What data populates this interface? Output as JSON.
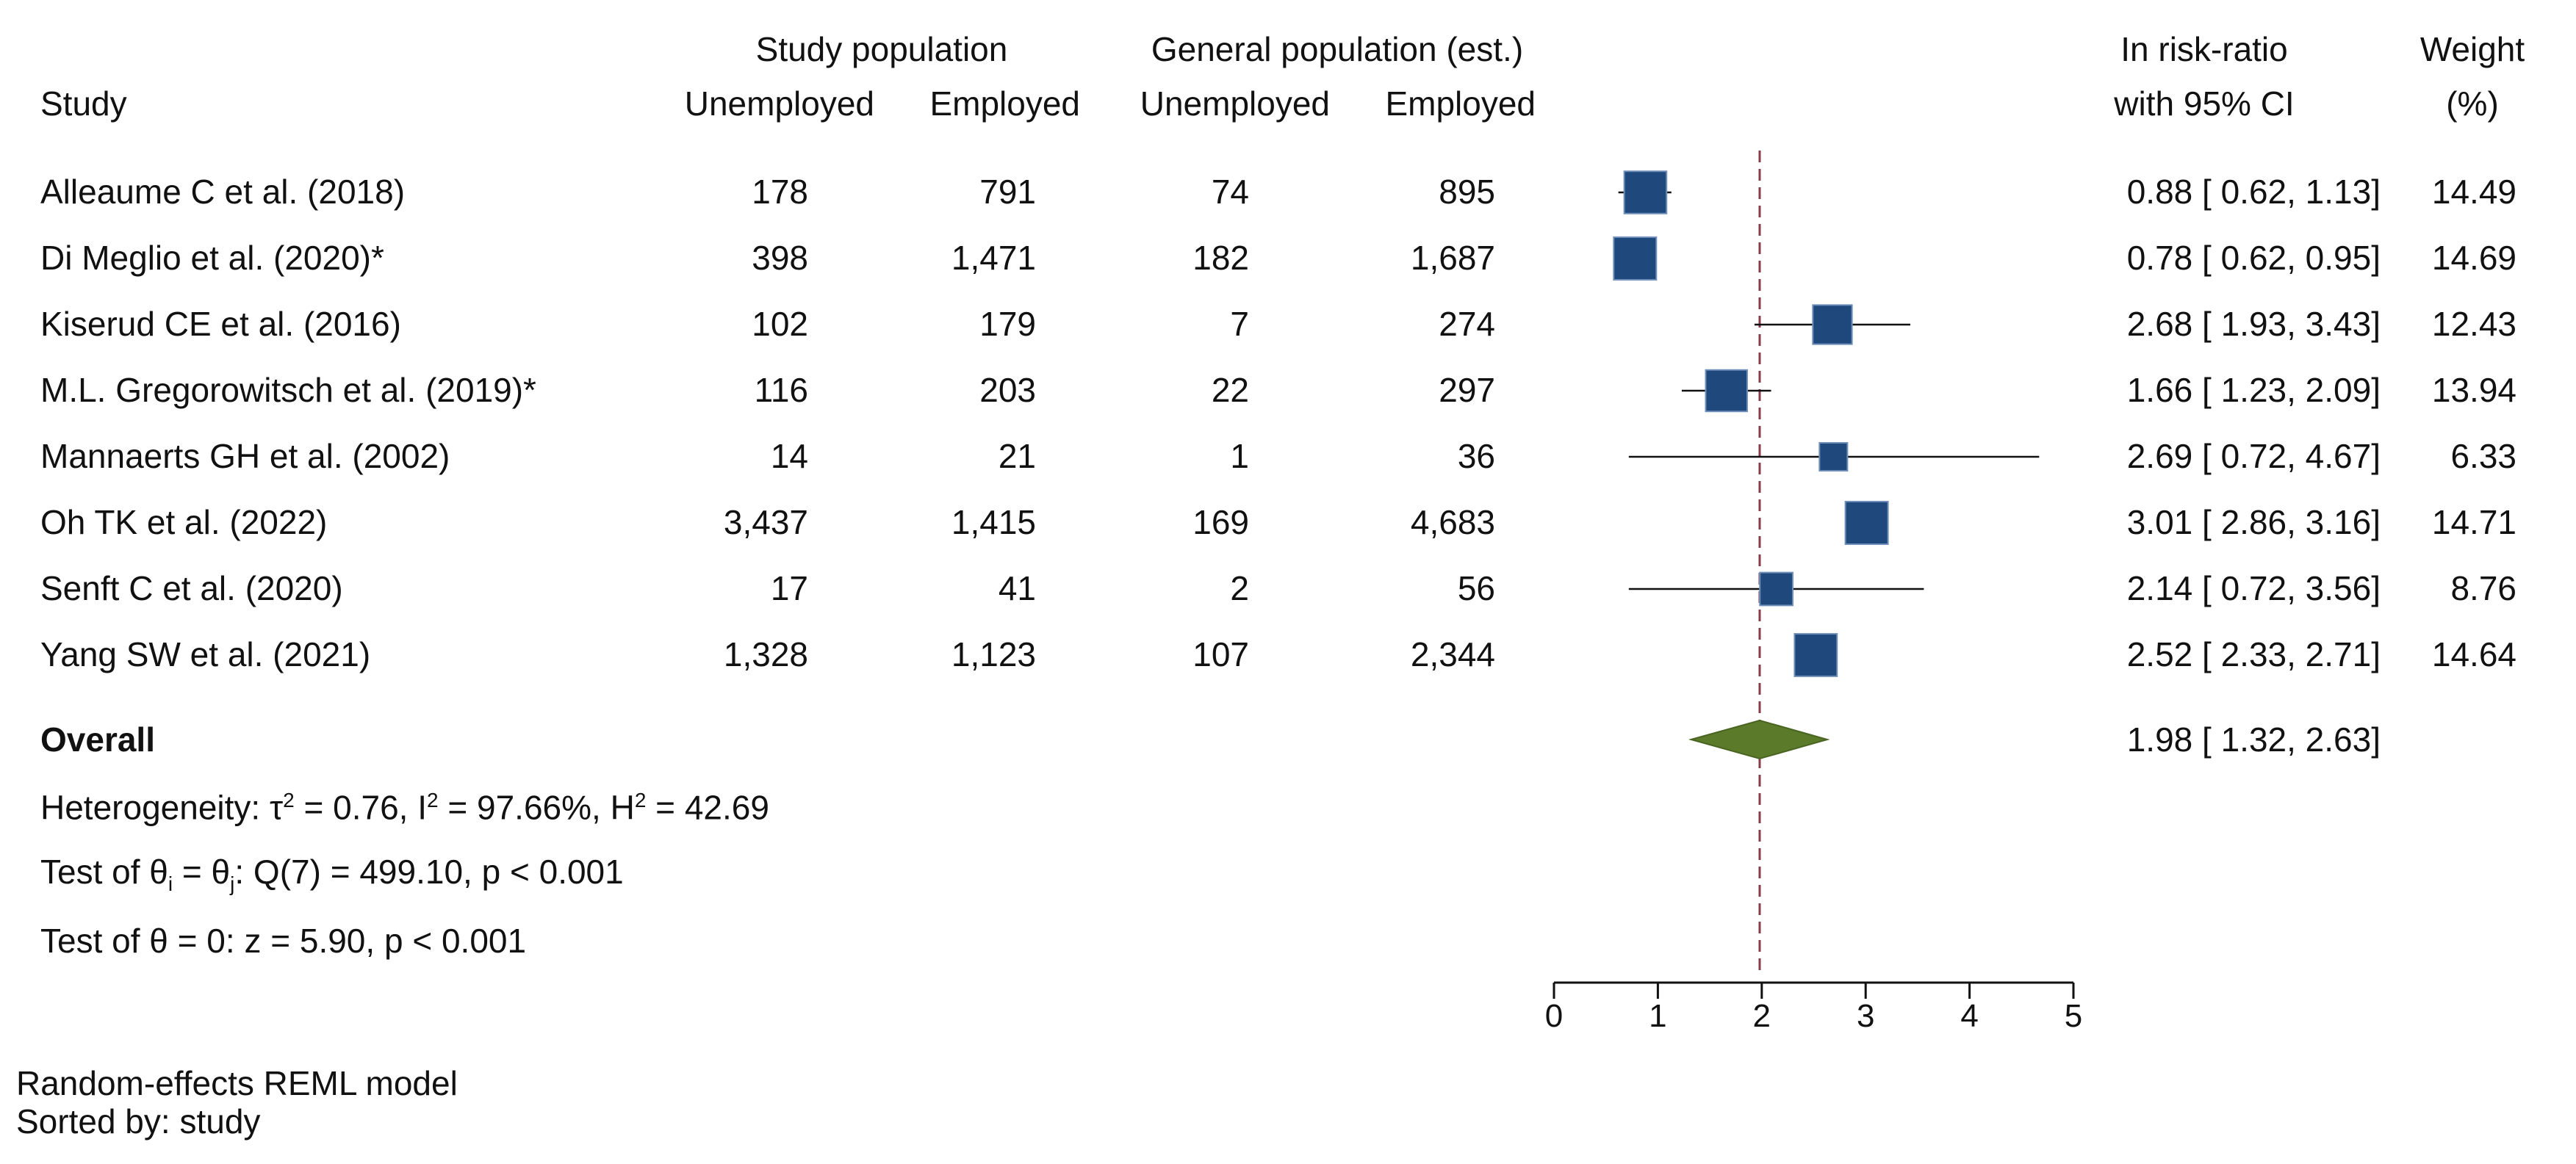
{
  "header": {
    "study": "Study",
    "study_population": "Study population",
    "general_population": "General population (est.)",
    "unemployed": "Unemployed",
    "employed": "Employed",
    "effect_line1": "In risk-ratio",
    "effect_line2": "with 95% CI",
    "weight_line1": "Weight",
    "weight_line2": "(%)"
  },
  "rows": [
    {
      "study": "Alleaume C et al. (2018)",
      "sp_unemp": "178",
      "sp_emp": "791",
      "gp_unemp": "74",
      "gp_emp": "895",
      "ci": "0.88 [ 0.62,  1.13]",
      "weight": "14.49"
    },
    {
      "study": "Di Meglio et al. (2020)*",
      "sp_unemp": "398",
      "sp_emp": "1,471",
      "gp_unemp": "182",
      "gp_emp": "1,687",
      "ci": "0.78 [ 0.62,  0.95]",
      "weight": "14.69"
    },
    {
      "study": "Kiserud CE et al. (2016)",
      "sp_unemp": "102",
      "sp_emp": "179",
      "gp_unemp": "7",
      "gp_emp": "274",
      "ci": "2.68 [ 1.93,  3.43]",
      "weight": "12.43"
    },
    {
      "study": "M.L. Gregorowitsch et al. (2019)*",
      "sp_unemp": "116",
      "sp_emp": "203",
      "gp_unemp": "22",
      "gp_emp": "297",
      "ci": "1.66 [ 1.23,  2.09]",
      "weight": "13.94"
    },
    {
      "study": "Mannaerts GH et al. (2002)",
      "sp_unemp": "14",
      "sp_emp": "21",
      "gp_unemp": "1",
      "gp_emp": "36",
      "ci": "2.69 [ 0.72,  4.67]",
      "weight": "6.33"
    },
    {
      "study": "Oh TK et al. (2022)",
      "sp_unemp": "3,437",
      "sp_emp": "1,415",
      "gp_unemp": "169",
      "gp_emp": "4,683",
      "ci": "3.01 [ 2.86,  3.16]",
      "weight": "14.71"
    },
    {
      "study": "Senft C et al. (2020)",
      "sp_unemp": "17",
      "sp_emp": "41",
      "gp_unemp": "2",
      "gp_emp": "56",
      "ci": "2.14 [ 0.72,  3.56]",
      "weight": "8.76"
    },
    {
      "study": "Yang SW et al. (2021)",
      "sp_unemp": "1,328",
      "sp_emp": "1,123",
      "gp_unemp": "107",
      "gp_emp": "2,344",
      "ci": "2.52 [ 2.33,  2.71]",
      "weight": "14.64"
    }
  ],
  "overall": {
    "label": "Overall",
    "ci": "1.98 [ 1.32,  2.63]"
  },
  "stats": {
    "het_prefix": "Heterogeneity: τ",
    "het_sup1": "2",
    "het_mid1": " = 0.76, I",
    "het_sup2": "2",
    "het_mid2": " = 97.66%, H",
    "het_sup3": "2",
    "het_end": " = 42.69",
    "test1_a": "Test of θ",
    "test1_sub1": "i",
    "test1_b": " = θ",
    "test1_sub2": "j",
    "test1_c": ": Q(7) = 499.10, p < 0.001",
    "test2": "Test of θ = 0: z = 5.90, p < 0.001"
  },
  "footer": {
    "model": "Random-effects REML model",
    "sorted": "Sorted by: study"
  },
  "colors": {
    "marker": "#1f497d",
    "diamond": "#5b7a2a",
    "refline": "#8b3a4a"
  },
  "chart_data": {
    "type": "forest",
    "title": "",
    "xlabel": "",
    "xlim": [
      0,
      5
    ],
    "xticks": [
      "0",
      "1",
      "2",
      "3",
      "4",
      "5"
    ],
    "reference_line": 1.98,
    "studies": [
      {
        "name": "Alleaume C et al. (2018)",
        "rr": 0.88,
        "lo": 0.62,
        "hi": 1.13,
        "weight": 14.49
      },
      {
        "name": "Di Meglio et al. (2020)*",
        "rr": 0.78,
        "lo": 0.62,
        "hi": 0.95,
        "weight": 14.69
      },
      {
        "name": "Kiserud CE et al. (2016)",
        "rr": 2.68,
        "lo": 1.93,
        "hi": 3.43,
        "weight": 12.43
      },
      {
        "name": "M.L. Gregorowitsch et al. (2019)*",
        "rr": 1.66,
        "lo": 1.23,
        "hi": 2.09,
        "weight": 13.94
      },
      {
        "name": "Mannaerts GH et al. (2002)",
        "rr": 2.69,
        "lo": 0.72,
        "hi": 4.67,
        "weight": 6.33
      },
      {
        "name": "Oh TK et al. (2022)",
        "rr": 3.01,
        "lo": 2.86,
        "hi": 3.16,
        "weight": 14.71
      },
      {
        "name": "Senft C et al. (2020)",
        "rr": 2.14,
        "lo": 0.72,
        "hi": 3.56,
        "weight": 8.76
      },
      {
        "name": "Yang SW et al. (2021)",
        "rr": 2.52,
        "lo": 2.33,
        "hi": 2.71,
        "weight": 14.64
      }
    ],
    "overall": {
      "rr": 1.98,
      "lo": 1.32,
      "hi": 2.63
    }
  }
}
